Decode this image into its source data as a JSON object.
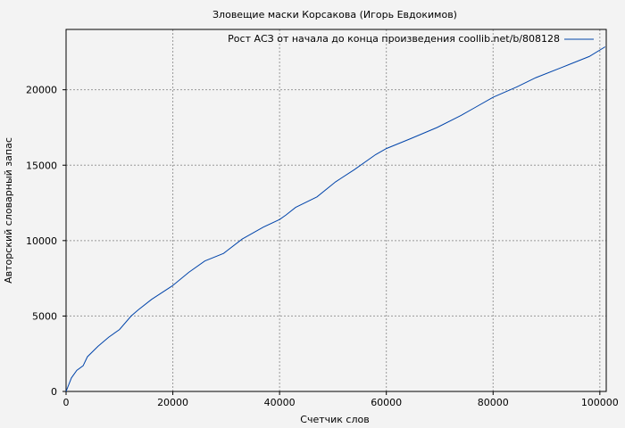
{
  "chart_data": {
    "type": "line",
    "title": "Зловещие маски Корсакова (Игорь Евдокимов)",
    "xlabel": "Счетчик слов",
    "ylabel": "Авторский словарный запас",
    "xlim": [
      0,
      101200
    ],
    "ylim": [
      0,
      24000
    ],
    "xticks": [
      0,
      20000,
      40000,
      60000,
      80000,
      100000
    ],
    "yticks": [
      0,
      5000,
      10000,
      15000,
      20000
    ],
    "grid": true,
    "legend_position": "top-right",
    "line_color": "#0044aa",
    "series": [
      {
        "name": "Рост АСЗ от начала до конца произведения coollib.net/b/808128",
        "x": [
          0,
          1000,
          2000,
          3200,
          4000,
          6000,
          8000,
          10000,
          12200,
          13500,
          16000,
          19900,
          23000,
          26000,
          29500,
          33000,
          37000,
          40000,
          41200,
          43000,
          47000,
          50500,
          54000,
          58000,
          60000,
          64500,
          69500,
          74000,
          76500,
          80000,
          84500,
          88000,
          93000,
          98000,
          101000
        ],
        "y": [
          0,
          900,
          1400,
          1700,
          2300,
          3000,
          3600,
          4100,
          5000,
          5400,
          6100,
          7000,
          7900,
          8650,
          9150,
          10100,
          10900,
          11400,
          11700,
          12200,
          12900,
          13900,
          14700,
          15700,
          16100,
          16750,
          17500,
          18300,
          18800,
          19500,
          20200,
          20800,
          21500,
          22200,
          22850
        ]
      }
    ]
  }
}
